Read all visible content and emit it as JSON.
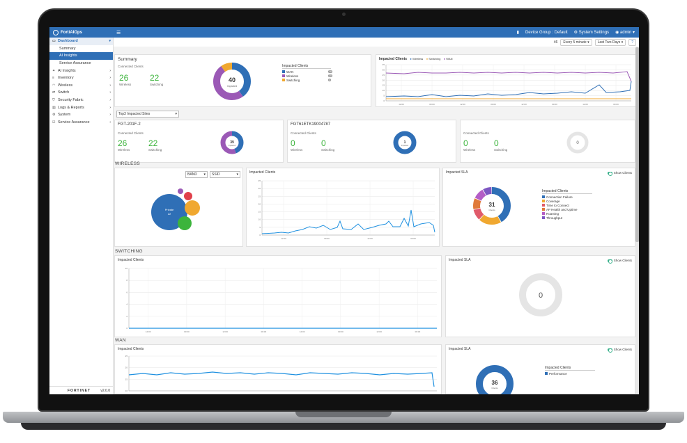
{
  "app": {
    "title": "FortiAIOps",
    "menu_icon": "☰",
    "device_group": "Device Group : Default",
    "system_settings": "System Settings",
    "user": "admin"
  },
  "sidebar": {
    "dashboard": "Dashboard",
    "sub": [
      "Summary",
      "AI Insights",
      "Service Assurance"
    ],
    "items": [
      "AI Insights",
      "Inventory",
      "Wireless",
      "Switch",
      "Security Fabric",
      "Logs & Reports",
      "System",
      "Service Assurance"
    ],
    "brand": "FORTINET",
    "version": "v2.0.0"
  },
  "controls": {
    "count": "46",
    "refresh": "Every 5 minute",
    "range": "Last Two Days"
  },
  "summary": {
    "title": "Summary",
    "connected": "Connected Clients",
    "wireless_val": "26",
    "wireless_lbl": "Wireless",
    "switching_val": "22",
    "switching_lbl": "Switching",
    "donut_val": "40",
    "donut_lbl": "Impacted",
    "impacted_title": "Impacted Clients",
    "legend": [
      "WAN",
      "Wireless",
      "Switching"
    ],
    "legend_counts": [
      "16",
      "20",
      "4"
    ],
    "colors": {
      "wan": "#2f6fb6",
      "wireless": "#9b59b6",
      "switching": "#f0a830"
    }
  },
  "top_chart": {
    "title": "Impacted Clients",
    "legend": [
      "Wireless",
      "Switching",
      "WAN"
    ],
    "yticks": [
      "35",
      "30",
      "25",
      "20",
      "15",
      "10",
      "5",
      "0"
    ],
    "xticks": [
      "12:00",
      "00:00",
      "12:00",
      "00:00",
      "12:00",
      "00:00",
      "12:00",
      "00:00"
    ]
  },
  "top3": {
    "label": "Top3 Impacted Sites"
  },
  "sites": [
    {
      "name": "FGT-201F-2",
      "connected": "Connected Clients",
      "w": "26",
      "w_lbl": "Wireless",
      "s": "22",
      "s_lbl": "Switching",
      "donut": "39",
      "donut_lbl": "Impacted"
    },
    {
      "name": "FGT61ETK19004787",
      "connected": "Connected Clients",
      "w": "0",
      "w_lbl": "Wireless",
      "s": "0",
      "s_lbl": "Switching",
      "donut": "1",
      "donut_lbl": "Impacted"
    },
    {
      "name": "",
      "connected": "Connected Clients",
      "w": "0",
      "w_lbl": "Wireless",
      "s": "0",
      "s_lbl": "Switching",
      "donut": "0",
      "donut_lbl": ""
    }
  ],
  "wireless": {
    "title": "WIRELESS",
    "band": "BAND",
    "ssid": "SSID",
    "bubble": "Private",
    "bubble_val": "22",
    "chart_title": "Impacted Clients",
    "yticks": [
      "35",
      "30",
      "25",
      "20",
      "15",
      "10",
      "5",
      "0"
    ],
    "xticks": [
      "12:00",
      "00:00",
      "12:00",
      "00:00"
    ],
    "sla_title": "Impacted SLA",
    "show_clients": "Show Clients",
    "sla_val": "31",
    "sla_lbl": "Clients",
    "sla_legend_title": "Impacted Clients",
    "sla_legend": [
      "Connection Failure",
      "Coverage",
      "Time to Connect",
      "AP Health and Uptime",
      "Roaming",
      "Throughput"
    ],
    "sla_colors": [
      "#2f6fb6",
      "#f0a830",
      "#e05a6a",
      "#e07a3a",
      "#b45dc6",
      "#7e57c2"
    ]
  },
  "switching": {
    "title": "SWITCHING",
    "chart_title": "Impacted Clients",
    "yticks": [
      "10",
      "8",
      "6",
      "4",
      "2",
      "0"
    ],
    "xticks": [
      "12:00",
      "00:00",
      "12:00",
      "00:00",
      "12:00",
      "00:00",
      "12:00",
      "00:00"
    ],
    "sla_title": "Impacted SLA",
    "show_clients": "Show Clients",
    "sla_val": "0"
  },
  "wan": {
    "title": "WAN",
    "chart_title": "Impacted Clients",
    "yticks": [
      "25",
      "20",
      "15",
      "10"
    ],
    "sla_title": "Impacted SLA",
    "show_clients": "Show Clients",
    "sla_val": "36",
    "sla_lbl": "Clients",
    "sla_legend_title": "Impacted Clients",
    "sla_legend": [
      "Performance"
    ]
  }
}
